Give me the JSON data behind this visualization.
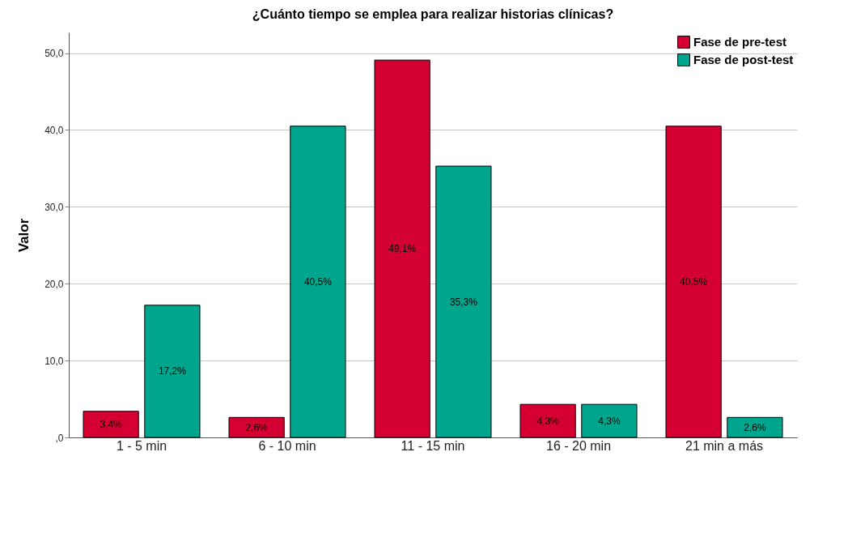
{
  "chart_data": {
    "type": "bar",
    "title": "¿Cuánto tiempo se emplea para realizar historias clínicas?",
    "ylabel": "Valor",
    "categories": [
      "1 - 5 min",
      "6 - 10 min",
      "11 - 15 min",
      "16 - 20 min",
      "21 min a más"
    ],
    "series": [
      {
        "name": "Fase de pre-test",
        "color": "#d50032",
        "values": [
          3.4,
          2.6,
          49.1,
          4.3,
          40.5
        ],
        "value_labels": [
          "3,4%",
          "2,6%",
          "49,1%",
          "4,3%",
          "40,5%"
        ]
      },
      {
        "name": "Fase de post-test",
        "color": "#00a58e",
        "values": [
          17.2,
          40.5,
          35.3,
          4.3,
          2.6
        ],
        "value_labels": [
          "17,2%",
          "40,5%",
          "35,3%",
          "4,3%",
          "2,6%"
        ]
      }
    ],
    "ylim": [
      0,
      52.7
    ],
    "yticks": [
      {
        "value": 0,
        "label": ",0"
      },
      {
        "value": 10,
        "label": "10,0"
      },
      {
        "value": 20,
        "label": "20,0"
      },
      {
        "value": 30,
        "label": "30,0"
      },
      {
        "value": 40,
        "label": "40,0"
      },
      {
        "value": 50,
        "label": "50,0"
      }
    ],
    "grid": "y",
    "legend": "top right"
  }
}
